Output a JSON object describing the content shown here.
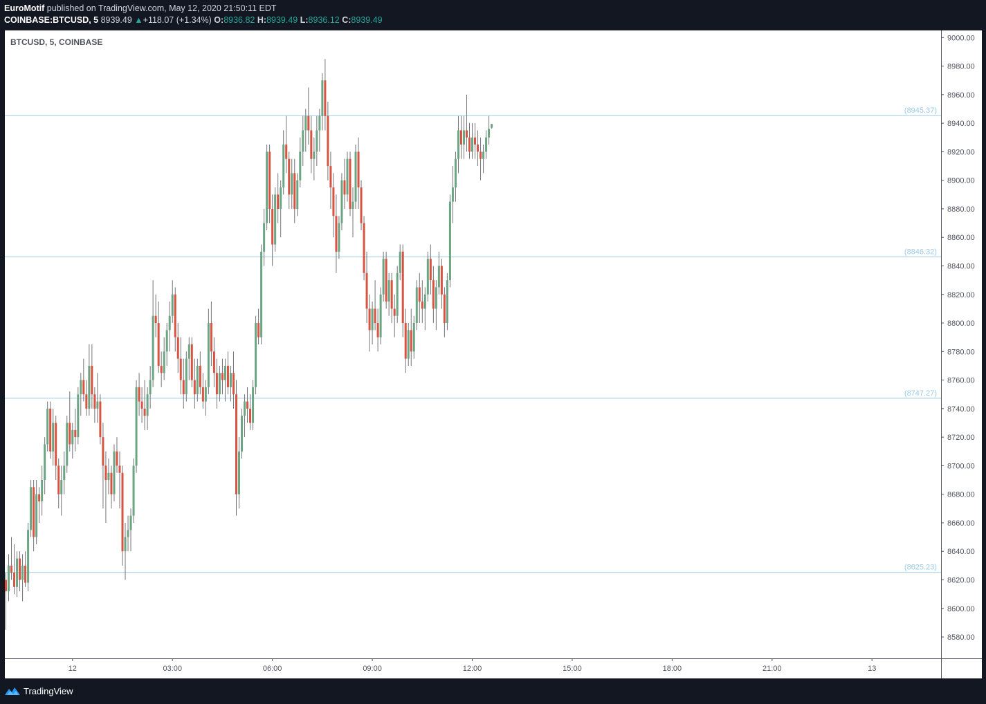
{
  "header": {
    "author": "EuroMotif",
    "published_text": " published on TradingView.com, May 12, 2020 21:50:11 EDT",
    "symbol": "COINBASE:BTCUSD, 5",
    "last": "8939.49",
    "change": "+118.07 (+1.34%)",
    "o_label": "O:",
    "o_value": "8936.82",
    "h_label": "H:",
    "h_value": "8939.49",
    "l_label": "L:",
    "l_value": "8936.12",
    "c_label": "C:",
    "c_value": "8939.49"
  },
  "legend": {
    "title": "BTCUSD, 5, COINBASE"
  },
  "footer": {
    "brand": "TradingView"
  },
  "colors": {
    "up": "#6ba583",
    "down": "#d75442",
    "line": "#9bcbe6",
    "label": "#9bcbe6",
    "axis_text": "#50535e"
  },
  "chart_data": {
    "type": "candlestick",
    "title": "BTCUSD, 5, COINBASE",
    "y_range": [
      8565,
      9005
    ],
    "y_ticks": [
      "9000.00",
      "8980.00",
      "8960.00",
      "8940.00",
      "8920.00",
      "8900.00",
      "8880.00",
      "8860.00",
      "8840.00",
      "8820.00",
      "8800.00",
      "8780.00",
      "8760.00",
      "8740.00",
      "8720.00",
      "8700.00",
      "8680.00",
      "8660.00",
      "8640.00",
      "8620.00",
      "8600.00",
      "8580.00"
    ],
    "x_ticks": [
      {
        "label": "12",
        "bar": 24
      },
      {
        "label": "03:00",
        "bar": 60
      },
      {
        "label": "06:00",
        "bar": 96
      },
      {
        "label": "09:00",
        "bar": 132
      },
      {
        "label": "12:00",
        "bar": 168
      },
      {
        "label": "15:00",
        "bar": 204
      },
      {
        "label": "18:00",
        "bar": 240
      },
      {
        "label": "21:00",
        "bar": 276
      },
      {
        "label": "13",
        "bar": 312
      }
    ],
    "horizontal_lines": [
      {
        "value": 8945.37,
        "label": "(8945.37)"
      },
      {
        "value": 8846.32,
        "label": "(8846.32)"
      },
      {
        "value": 8747.27,
        "label": "(8747.27)"
      },
      {
        "value": 8625.23,
        "label": "(8625.23)"
      }
    ],
    "ohlc": [
      [
        8620,
        8625,
        8585,
        8612
      ],
      [
        8612,
        8638,
        8605,
        8630
      ],
      [
        8630,
        8650,
        8620,
        8625
      ],
      [
        8625,
        8645,
        8610,
        8615
      ],
      [
        8615,
        8640,
        8608,
        8635
      ],
      [
        8635,
        8640,
        8612,
        8620
      ],
      [
        8620,
        8638,
        8605,
        8630
      ],
      [
        8630,
        8640,
        8615,
        8618
      ],
      [
        8618,
        8660,
        8612,
        8655
      ],
      [
        8655,
        8690,
        8650,
        8685
      ],
      [
        8685,
        8690,
        8640,
        8650
      ],
      [
        8650,
        8690,
        8645,
        8680
      ],
      [
        8680,
        8685,
        8660,
        8675
      ],
      [
        8675,
        8700,
        8665,
        8690
      ],
      [
        8690,
        8720,
        8680,
        8715
      ],
      [
        8715,
        8745,
        8710,
        8740
      ],
      [
        8740,
        8745,
        8705,
        8710
      ],
      [
        8710,
        8740,
        8700,
        8730
      ],
      [
        8730,
        8735,
        8690,
        8700
      ],
      [
        8700,
        8705,
        8670,
        8680
      ],
      [
        8680,
        8700,
        8665,
        8690
      ],
      [
        8690,
        8710,
        8680,
        8700
      ],
      [
        8700,
        8735,
        8695,
        8730
      ],
      [
        8730,
        8752,
        8710,
        8715
      ],
      [
        8715,
        8730,
        8705,
        8725
      ],
      [
        8725,
        8740,
        8710,
        8720
      ],
      [
        8720,
        8755,
        8715,
        8750
      ],
      [
        8750,
        8765,
        8735,
        8760
      ],
      [
        8760,
        8775,
        8745,
        8750
      ],
      [
        8750,
        8760,
        8735,
        8740
      ],
      [
        8740,
        8785,
        8735,
        8770
      ],
      [
        8770,
        8785,
        8740,
        8750
      ],
      [
        8750,
        8755,
        8730,
        8740
      ],
      [
        8740,
        8765,
        8730,
        8745
      ],
      [
        8745,
        8750,
        8715,
        8720
      ],
      [
        8720,
        8730,
        8670,
        8700
      ],
      [
        8700,
        8710,
        8660,
        8690
      ],
      [
        8690,
        8705,
        8680,
        8695
      ],
      [
        8695,
        8700,
        8670,
        8680
      ],
      [
        8680,
        8715,
        8675,
        8710
      ],
      [
        8710,
        8720,
        8695,
        8700
      ],
      [
        8700,
        8710,
        8670,
        8695
      ],
      [
        8695,
        8700,
        8630,
        8640
      ],
      [
        8640,
        8660,
        8620,
        8650
      ],
      [
        8650,
        8665,
        8640,
        8655
      ],
      [
        8655,
        8670,
        8640,
        8665
      ],
      [
        8665,
        8705,
        8660,
        8700
      ],
      [
        8700,
        8760,
        8695,
        8755
      ],
      [
        8755,
        8765,
        8735,
        8745
      ],
      [
        8745,
        8755,
        8730,
        8740
      ],
      [
        8740,
        8760,
        8725,
        8735
      ],
      [
        8735,
        8755,
        8725,
        8750
      ],
      [
        8750,
        8770,
        8740,
        8760
      ],
      [
        8760,
        8830,
        8755,
        8805
      ],
      [
        8805,
        8820,
        8790,
        8800
      ],
      [
        8800,
        8815,
        8765,
        8770
      ],
      [
        8770,
        8780,
        8755,
        8765
      ],
      [
        8765,
        8790,
        8760,
        8780
      ],
      [
        8780,
        8800,
        8770,
        8795
      ],
      [
        8795,
        8815,
        8780,
        8805
      ],
      [
        8805,
        8830,
        8800,
        8820
      ],
      [
        8820,
        8825,
        8780,
        8790
      ],
      [
        8790,
        8800,
        8765,
        8775
      ],
      [
        8775,
        8790,
        8750,
        8760
      ],
      [
        8760,
        8775,
        8740,
        8750
      ],
      [
        8750,
        8780,
        8745,
        8775
      ],
      [
        8775,
        8790,
        8760,
        8785
      ],
      [
        8785,
        8790,
        8755,
        8760
      ],
      [
        8760,
        8775,
        8740,
        8750
      ],
      [
        8750,
        8775,
        8745,
        8770
      ],
      [
        8770,
        8780,
        8750,
        8755
      ],
      [
        8755,
        8765,
        8740,
        8745
      ],
      [
        8745,
        8760,
        8735,
        8755
      ],
      [
        8755,
        8810,
        8750,
        8800
      ],
      [
        8800,
        8815,
        8770,
        8780
      ],
      [
        8780,
        8790,
        8755,
        8765
      ],
      [
        8765,
        8775,
        8740,
        8750
      ],
      [
        8750,
        8770,
        8745,
        8765
      ],
      [
        8765,
        8775,
        8750,
        8760
      ],
      [
        8760,
        8775,
        8745,
        8770
      ],
      [
        8770,
        8780,
        8750,
        8755
      ],
      [
        8755,
        8770,
        8745,
        8765
      ],
      [
        8765,
        8780,
        8740,
        8750
      ],
      [
        8750,
        8760,
        8665,
        8680
      ],
      [
        8680,
        8720,
        8670,
        8710
      ],
      [
        8710,
        8740,
        8705,
        8735
      ],
      [
        8735,
        8750,
        8720,
        8745
      ],
      [
        8745,
        8755,
        8730,
        8740
      ],
      [
        8740,
        8750,
        8725,
        8730
      ],
      [
        8730,
        8760,
        8725,
        8755
      ],
      [
        8755,
        8805,
        8750,
        8800
      ],
      [
        8800,
        8810,
        8785,
        8790
      ],
      [
        8790,
        8855,
        8785,
        8850
      ],
      [
        8850,
        8880,
        8840,
        8870
      ],
      [
        8870,
        8925,
        8865,
        8920
      ],
      [
        8920,
        8925,
        8870,
        8880
      ],
      [
        8880,
        8890,
        8840,
        8855
      ],
      [
        8855,
        8895,
        8850,
        8890
      ],
      [
        8890,
        8905,
        8870,
        8880
      ],
      [
        8880,
        8900,
        8860,
        8895
      ],
      [
        8895,
        8935,
        8890,
        8925
      ],
      [
        8925,
        8945,
        8905,
        8915
      ],
      [
        8915,
        8920,
        8880,
        8890
      ],
      [
        8890,
        8915,
        8880,
        8905
      ],
      [
        8905,
        8915,
        8870,
        8880
      ],
      [
        8880,
        8905,
        8875,
        8900
      ],
      [
        8900,
        8930,
        8895,
        8920
      ],
      [
        8920,
        8945,
        8910,
        8935
      ],
      [
        8935,
        8950,
        8920,
        8945
      ],
      [
        8945,
        8965,
        8925,
        8935
      ],
      [
        8935,
        8945,
        8905,
        8915
      ],
      [
        8915,
        8930,
        8900,
        8920
      ],
      [
        8920,
        8945,
        8910,
        8935
      ],
      [
        8935,
        8950,
        8920,
        8945
      ],
      [
        8945,
        8975,
        8935,
        8970
      ],
      [
        8970,
        8985,
        8935,
        8945
      ],
      [
        8945,
        8955,
        8900,
        8910
      ],
      [
        8910,
        8920,
        8880,
        8895
      ],
      [
        8895,
        8905,
        8860,
        8875
      ],
      [
        8875,
        8890,
        8835,
        8850
      ],
      [
        8850,
        8875,
        8845,
        8870
      ],
      [
        8870,
        8905,
        8865,
        8900
      ],
      [
        8900,
        8915,
        8880,
        8890
      ],
      [
        8890,
        8920,
        8885,
        8915
      ],
      [
        8915,
        8920,
        8875,
        8880
      ],
      [
        8880,
        8895,
        8860,
        8885
      ],
      [
        8885,
        8925,
        8880,
        8920
      ],
      [
        8920,
        8930,
        8880,
        8895
      ],
      [
        8895,
        8900,
        8865,
        8870
      ],
      [
        8870,
        8875,
        8830,
        8835
      ],
      [
        8835,
        8850,
        8800,
        8810
      ],
      [
        8810,
        8820,
        8780,
        8795
      ],
      [
        8795,
        8815,
        8785,
        8810
      ],
      [
        8810,
        8830,
        8795,
        8800
      ],
      [
        8800,
        8810,
        8780,
        8790
      ],
      [
        8790,
        8825,
        8785,
        8820
      ],
      [
        8820,
        8850,
        8815,
        8845
      ],
      [
        8845,
        8850,
        8810,
        8815
      ],
      [
        8815,
        8835,
        8805,
        8830
      ],
      [
        8830,
        8835,
        8800,
        8810
      ],
      [
        8810,
        8820,
        8790,
        8805
      ],
      [
        8805,
        8840,
        8800,
        8835
      ],
      [
        8835,
        8855,
        8830,
        8850
      ],
      [
        8850,
        8855,
        8790,
        8800
      ],
      [
        8800,
        8810,
        8765,
        8775
      ],
      [
        8775,
        8800,
        8770,
        8795
      ],
      [
        8795,
        8810,
        8770,
        8780
      ],
      [
        8780,
        8805,
        8775,
        8800
      ],
      [
        8800,
        8830,
        8795,
        8825
      ],
      [
        8825,
        8835,
        8800,
        8815
      ],
      [
        8815,
        8830,
        8800,
        8810
      ],
      [
        8810,
        8825,
        8795,
        8820
      ],
      [
        8820,
        8850,
        8815,
        8845
      ],
      [
        8845,
        8855,
        8820,
        8830
      ],
      [
        8830,
        8840,
        8800,
        8810
      ],
      [
        8810,
        8830,
        8795,
        8825
      ],
      [
        8825,
        8850,
        8820,
        8840
      ],
      [
        8840,
        8845,
        8810,
        8820
      ],
      [
        8820,
        8825,
        8790,
        8800
      ],
      [
        8800,
        8835,
        8795,
        8830
      ],
      [
        8830,
        8890,
        8825,
        8885
      ],
      [
        8885,
        8910,
        8870,
        8895
      ],
      [
        8895,
        8920,
        8885,
        8915
      ],
      [
        8915,
        8945,
        8905,
        8935
      ],
      [
        8935,
        8945,
        8915,
        8925
      ],
      [
        8925,
        8945,
        8915,
        8935
      ],
      [
        8935,
        8960,
        8920,
        8930
      ],
      [
        8930,
        8940,
        8915,
        8920
      ],
      [
        8920,
        8940,
        8915,
        8930
      ],
      [
        8930,
        8940,
        8915,
        8925
      ],
      [
        8925,
        8935,
        8910,
        8920
      ],
      [
        8920,
        8930,
        8900,
        8915
      ],
      [
        8915,
        8925,
        8905,
        8920
      ],
      [
        8920,
        8935,
        8915,
        8930
      ],
      [
        8930,
        8945,
        8925,
        8936
      ],
      [
        8936.82,
        8939.49,
        8936.12,
        8939.49
      ]
    ]
  }
}
